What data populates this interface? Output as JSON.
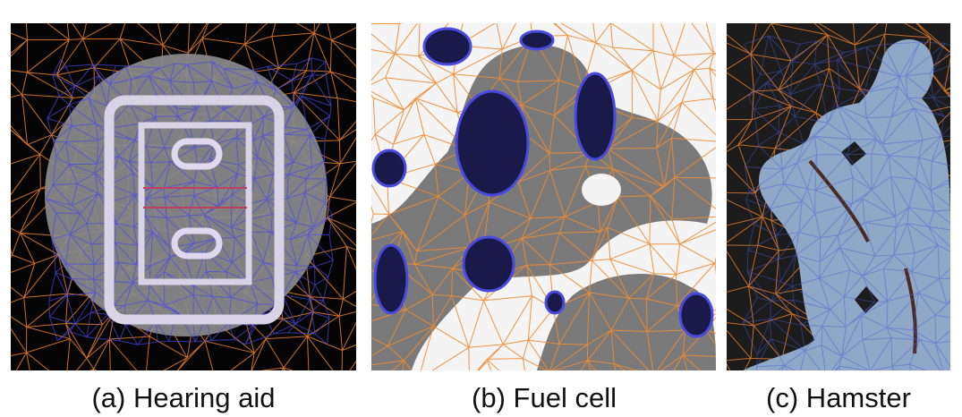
{
  "figure": {
    "panels": [
      {
        "caption": "(a) Hearing aid"
      },
      {
        "caption": "(b) Fuel cell"
      },
      {
        "caption": "(c) Hamster"
      }
    ]
  }
}
